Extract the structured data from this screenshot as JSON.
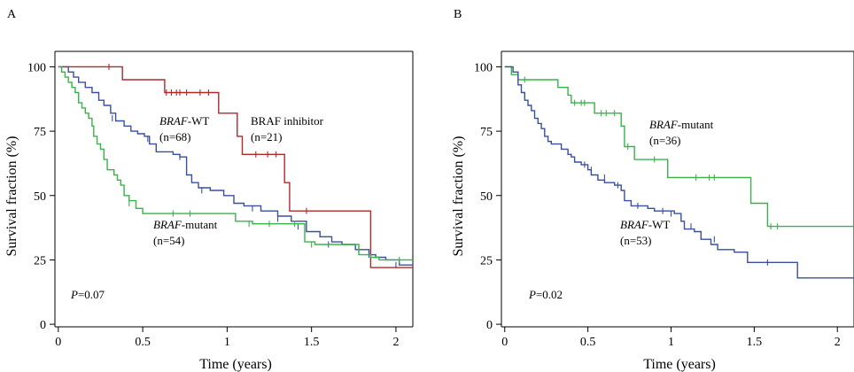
{
  "chart_data": [
    {
      "panel": "A",
      "type": "line",
      "step": true,
      "xlabel": "Time (years)",
      "ylabel": "Survival fraction (%)",
      "xlim": [
        -0.02,
        2.1
      ],
      "ylim": [
        -1,
        106
      ],
      "xticks": [
        0,
        0.5,
        1,
        1.5,
        2
      ],
      "xtick_labels": [
        "0",
        "0.5",
        "1",
        "1.5",
        "2"
      ],
      "yticks": [
        0,
        25,
        50,
        75,
        100
      ],
      "ytick_labels": [
        "0",
        "25",
        "50",
        "75",
        "100"
      ],
      "p_label": "P",
      "p_value": "=0.07",
      "annotations": [
        {
          "series": 0,
          "italic": "BRAF",
          "rest": "-WT",
          "n": "(n=68)"
        },
        {
          "series": 1,
          "italic": "",
          "rest": "BRAF inhibitor",
          "n": "(n=21)"
        },
        {
          "series": 2,
          "italic": "BRAF",
          "rest": "-mutant",
          "n": "(n=54)"
        }
      ],
      "series": [
        {
          "color": "#3a4fa0",
          "points": [
            [
              0,
              100
            ],
            [
              0.06,
              98
            ],
            [
              0.09,
              96
            ],
            [
              0.12,
              94
            ],
            [
              0.16,
              92
            ],
            [
              0.2,
              90
            ],
            [
              0.24,
              87
            ],
            [
              0.27,
              85
            ],
            [
              0.31,
              82
            ],
            [
              0.34,
              79
            ],
            [
              0.39,
              77
            ],
            [
              0.43,
              75
            ],
            [
              0.47,
              74
            ],
            [
              0.51,
              73
            ],
            [
              0.54,
              70
            ],
            [
              0.58,
              67
            ],
            [
              0.68,
              66
            ],
            [
              0.72,
              65
            ],
            [
              0.76,
              58
            ],
            [
              0.79,
              55
            ],
            [
              0.83,
              53
            ],
            [
              0.9,
              52
            ],
            [
              0.98,
              50
            ],
            [
              1.04,
              47
            ],
            [
              1.1,
              46
            ],
            [
              1.2,
              44
            ],
            [
              1.3,
              42
            ],
            [
              1.38,
              40
            ],
            [
              1.47,
              36
            ],
            [
              1.55,
              34
            ],
            [
              1.62,
              32
            ],
            [
              1.68,
              31
            ],
            [
              1.76,
              29
            ],
            [
              1.84,
              27
            ],
            [
              1.88,
              26
            ],
            [
              1.94,
              25
            ],
            [
              2.02,
              23
            ],
            [
              2.1,
              22
            ]
          ],
          "censor": [
            [
              0.32,
              80
            ],
            [
              0.53,
              72
            ],
            [
              0.72,
              65
            ],
            [
              0.85,
              52
            ],
            [
              1.15,
              45
            ],
            [
              1.3,
              41
            ],
            [
              1.42,
              38
            ],
            [
              1.6,
              31
            ],
            [
              1.78,
              29
            ],
            [
              1.84,
              27
            ],
            [
              2.0,
              23
            ]
          ]
        },
        {
          "color": "#b02a2a",
          "points": [
            [
              0,
              100
            ],
            [
              0.35,
              100
            ],
            [
              0.38,
              95
            ],
            [
              0.6,
              95
            ],
            [
              0.63,
              90
            ],
            [
              0.92,
              90
            ],
            [
              0.95,
              82
            ],
            [
              1.03,
              82
            ],
            [
              1.06,
              73
            ],
            [
              1.08,
              73
            ],
            [
              1.09,
              66
            ],
            [
              1.33,
              66
            ],
            [
              1.34,
              55
            ],
            [
              1.36,
              55
            ],
            [
              1.37,
              44
            ],
            [
              1.84,
              44
            ],
            [
              1.85,
              22
            ],
            [
              2.1,
              22
            ]
          ],
          "censor": [
            [
              0.3,
              100
            ],
            [
              0.64,
              90
            ],
            [
              0.67,
              90
            ],
            [
              0.7,
              90
            ],
            [
              0.72,
              90
            ],
            [
              0.76,
              90
            ],
            [
              0.84,
              90
            ],
            [
              0.89,
              90
            ],
            [
              1.17,
              66
            ],
            [
              1.24,
              66
            ],
            [
              1.29,
              66
            ],
            [
              1.47,
              44
            ]
          ]
        },
        {
          "color": "#3ab24a",
          "points": [
            [
              0,
              100
            ],
            [
              0.02,
              98
            ],
            [
              0.04,
              96
            ],
            [
              0.06,
              94
            ],
            [
              0.08,
              92
            ],
            [
              0.1,
              90
            ],
            [
              0.12,
              86
            ],
            [
              0.14,
              84
            ],
            [
              0.16,
              82
            ],
            [
              0.18,
              80
            ],
            [
              0.2,
              77
            ],
            [
              0.21,
              73
            ],
            [
              0.23,
              70
            ],
            [
              0.25,
              68
            ],
            [
              0.27,
              64
            ],
            [
              0.29,
              60
            ],
            [
              0.31,
              60
            ],
            [
              0.33,
              58
            ],
            [
              0.35,
              56
            ],
            [
              0.37,
              54
            ],
            [
              0.39,
              50
            ],
            [
              0.42,
              48
            ],
            [
              0.46,
              45
            ],
            [
              0.5,
              43
            ],
            [
              0.6,
              43
            ],
            [
              0.9,
              43
            ],
            [
              1.05,
              40
            ],
            [
              1.15,
              39
            ],
            [
              1.4,
              39
            ],
            [
              1.46,
              32
            ],
            [
              1.52,
              31
            ],
            [
              1.78,
              27
            ],
            [
              1.85,
              26
            ],
            [
              1.9,
              25
            ],
            [
              2.1,
              25
            ]
          ],
          "censor": [
            [
              0.42,
              47
            ],
            [
              0.68,
              43
            ],
            [
              0.78,
              43
            ],
            [
              1.13,
              39
            ],
            [
              1.25,
              39
            ],
            [
              1.4,
              39
            ],
            [
              1.5,
              31
            ],
            [
              2.02,
              25
            ]
          ]
        }
      ]
    },
    {
      "panel": "B",
      "type": "line",
      "step": true,
      "xlabel": "Time (years)",
      "ylabel": "Survival fraction (%)",
      "xlim": [
        -0.02,
        2.1
      ],
      "ylim": [
        -1,
        106
      ],
      "xticks": [
        0,
        0.5,
        1,
        1.5,
        2
      ],
      "xtick_labels": [
        "0",
        "0.5",
        "1",
        "1.5",
        "2"
      ],
      "yticks": [
        0,
        25,
        50,
        75,
        100
      ],
      "ytick_labels": [
        "0",
        "25",
        "50",
        "75",
        "100"
      ],
      "p_label": "P",
      "p_value": "=0.02",
      "annotations": [
        {
          "series": 0,
          "italic": "BRAF",
          "rest": "-mutant",
          "n": "(n=36)"
        },
        {
          "series": 1,
          "italic": "BRAF",
          "rest": "-WT",
          "n": "(n=53)"
        }
      ],
      "series": [
        {
          "color": "#3ab24a",
          "points": [
            [
              0,
              100
            ],
            [
              0.04,
              97
            ],
            [
              0.08,
              95
            ],
            [
              0.28,
              95
            ],
            [
              0.32,
              92
            ],
            [
              0.38,
              89
            ],
            [
              0.4,
              86
            ],
            [
              0.5,
              86
            ],
            [
              0.54,
              82
            ],
            [
              0.68,
              82
            ],
            [
              0.7,
              77
            ],
            [
              0.72,
              69
            ],
            [
              0.76,
              69
            ],
            [
              0.78,
              64
            ],
            [
              0.94,
              64
            ],
            [
              0.98,
              57
            ],
            [
              1.44,
              57
            ],
            [
              1.48,
              47
            ],
            [
              1.56,
              47
            ],
            [
              1.58,
              38
            ],
            [
              2.1,
              38
            ]
          ],
          "censor": [
            [
              0.12,
              95
            ],
            [
              0.42,
              86
            ],
            [
              0.46,
              86
            ],
            [
              0.48,
              86
            ],
            [
              0.58,
              82
            ],
            [
              0.61,
              82
            ],
            [
              0.66,
              82
            ],
            [
              0.74,
              69
            ],
            [
              0.9,
              64
            ],
            [
              1.15,
              57
            ],
            [
              1.23,
              57
            ],
            [
              1.26,
              57
            ],
            [
              1.6,
              38
            ],
            [
              1.64,
              38
            ]
          ]
        },
        {
          "color": "#3a4fa0",
          "points": [
            [
              0,
              100
            ],
            [
              0.05,
              98
            ],
            [
              0.08,
              93
            ],
            [
              0.1,
              90
            ],
            [
              0.12,
              87
            ],
            [
              0.14,
              85
            ],
            [
              0.16,
              83
            ],
            [
              0.18,
              80
            ],
            [
              0.2,
              78
            ],
            [
              0.22,
              76
            ],
            [
              0.24,
              73
            ],
            [
              0.26,
              71
            ],
            [
              0.28,
              70
            ],
            [
              0.34,
              68
            ],
            [
              0.38,
              66
            ],
            [
              0.4,
              65
            ],
            [
              0.42,
              63
            ],
            [
              0.46,
              62
            ],
            [
              0.5,
              60
            ],
            [
              0.52,
              58
            ],
            [
              0.56,
              56
            ],
            [
              0.6,
              55
            ],
            [
              0.66,
              54
            ],
            [
              0.7,
              52
            ],
            [
              0.72,
              48
            ],
            [
              0.76,
              46
            ],
            [
              0.86,
              45
            ],
            [
              0.9,
              44
            ],
            [
              1.02,
              43
            ],
            [
              1.06,
              40
            ],
            [
              1.08,
              37
            ],
            [
              1.14,
              36
            ],
            [
              1.18,
              33
            ],
            [
              1.24,
              31
            ],
            [
              1.28,
              29
            ],
            [
              1.34,
              29
            ],
            [
              1.38,
              28
            ],
            [
              1.46,
              24
            ],
            [
              1.7,
              24
            ],
            [
              1.76,
              18
            ],
            [
              2.1,
              18
            ]
          ],
          "censor": [
            [
              0.48,
              62
            ],
            [
              0.52,
              60
            ],
            [
              0.6,
              57
            ],
            [
              0.68,
              54
            ],
            [
              0.8,
              46
            ],
            [
              0.95,
              44
            ],
            [
              1.0,
              43
            ],
            [
              1.12,
              38
            ],
            [
              1.26,
              33
            ],
            [
              1.58,
              24
            ]
          ]
        }
      ]
    }
  ]
}
